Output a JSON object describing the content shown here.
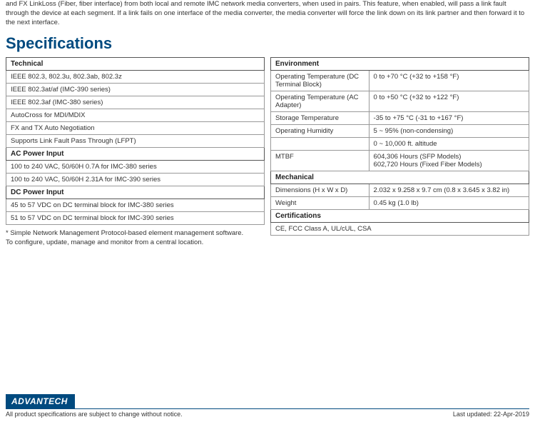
{
  "top_text": "and FX LinkLoss (Fiber, fiber interface) from both local and remote IMC network media converters, when used in pairs.  This feature, when enabled, will pass a link fault through the device at each segment.  If a link fails on one interface of the media converter, the media converter will force the link down on its link partner and then forward it to the next interface.",
  "title": "Specifications",
  "left": {
    "technical_header": "Technical",
    "technical_rows": [
      "IEEE 802.3, 802.3u, 802.3ab, 802.3z",
      "IEEE 802.3at/af (IMC-390 series)",
      "IEEE 802.3af (IMC-380 series)",
      "AutoCross for MDI/MDIX",
      "FX and TX Auto Negotiation",
      "Supports Link Fault Pass Through (LFPT)"
    ],
    "ac_header": "AC Power Input",
    "ac_rows": [
      "100 to 240 VAC, 50/60H 0.7A for IMC-380 series",
      "100 to 240 VAC, 50/60H 2.31A for IMC-390 series"
    ],
    "dc_header": "DC Power Input",
    "dc_rows": [
      "45 to 57 VDC on DC terminal block for IMC-380 series",
      "51 to 57 VDC on DC terminal block for IMC-390 series"
    ]
  },
  "right": {
    "env_header": "Environment",
    "env_rows": [
      {
        "label": "Operating Temperature (DC Terminal Block)",
        "value": "0 to +70 °C (+32 to +158 °F)"
      },
      {
        "label": "Operating Temperature (AC Adapter)",
        "value": "0 to +50 °C (+32 to +122 °F)"
      },
      {
        "label": "Storage Temperature",
        "value": "-35 to +75 °C (-31 to +167 °F)"
      },
      {
        "label": "Operating Humidity",
        "value": "5 ~ 95% (non-condensing)"
      },
      {
        "label": "",
        "value": "0 ~ 10,000 ft. altitude"
      },
      {
        "label": "MTBF",
        "value": "604,306 Hours (SFP Models)\n602,720 Hours (Fixed Fiber Models)"
      }
    ],
    "mech_header": "Mechanical",
    "mech_rows": [
      {
        "label": "Dimensions (H x W x D)",
        "value": "2.032 x 9.258 x 9.7 cm (0.8 x 3.645 x 3.82 in)"
      },
      {
        "label": "Weight",
        "value": "0.45 kg (1.0 lb)"
      }
    ],
    "cert_header": "Certifications",
    "cert_rows": [
      "CE, FCC Class A, UL/cUL, CSA"
    ]
  },
  "footnote_line1": "* Simple Network Management Protocol-based element management software.",
  "footnote_line2": "To configure, update, manage and monitor from a central location.",
  "logo_text": "ADVANTECH",
  "footer_left": "All product specifications are subject to change without notice.",
  "footer_right": "Last updated: 22-Apr-2019",
  "colors": {
    "brand": "#004a7f",
    "border_dark": "#555555",
    "border_light": "#999999",
    "text": "#333333"
  }
}
